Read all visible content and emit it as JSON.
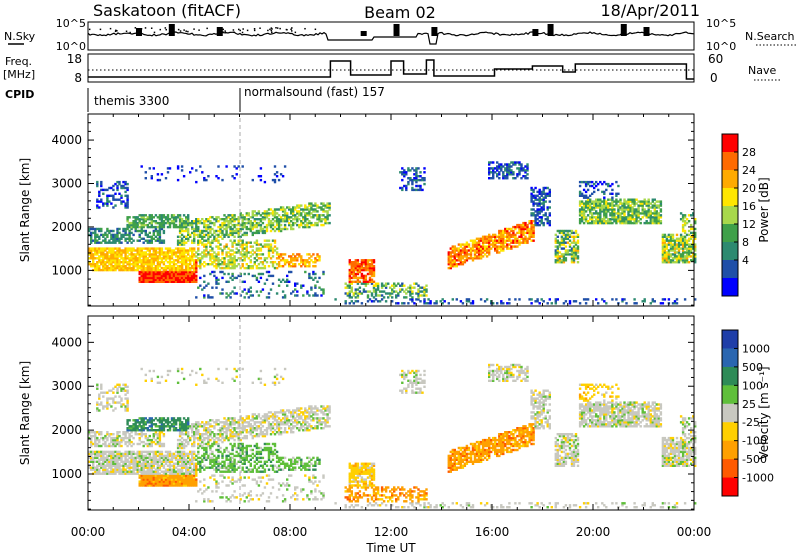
{
  "header": {
    "station": "Saskatoon (fitACF)",
    "beam": "Beam 02",
    "date": "18/Apr/2011"
  },
  "nsky_panel": {
    "left_label": "N.Sky",
    "left_ticks": [
      "10^5",
      "10^0"
    ],
    "right_label": "N.Search",
    "right_ticks": [
      "10^5",
      "10^0"
    ]
  },
  "freq_panel": {
    "left_label_line1": "Freq.",
    "left_label_line2": "[MHz]",
    "left_ticks": [
      "18",
      "8"
    ],
    "right_label": "Nave",
    "right_ticks": [
      "60",
      "0"
    ]
  },
  "cpid_panel": {
    "label": "CPID",
    "modes": [
      {
        "name": "themis 3300",
        "start_hour": 0
      },
      {
        "name": "normalsound (fast) 157",
        "start_hour": 6
      }
    ]
  },
  "chart_data": [
    {
      "type": "heatmap",
      "panel": "power",
      "ylabel": "Slant Range [km]",
      "yticks": [
        1000,
        2000,
        3000,
        4000
      ],
      "ylim": [
        180,
        4600
      ],
      "colorbar": {
        "label": "Power [dB]",
        "ticks": [
          "28",
          "24",
          "20",
          "16",
          "12",
          "8",
          "4"
        ],
        "colors": [
          "#ff0000",
          "#ff6a00",
          "#ffaa00",
          "#ffe600",
          "#a8d84b",
          "#3fa049",
          "#2d8a70",
          "#1f4fa8",
          "#0000ff"
        ]
      }
    },
    {
      "type": "heatmap",
      "panel": "velocity",
      "ylabel": "Slant Range [km]",
      "yticks": [
        1000,
        2000,
        3000,
        4000
      ],
      "ylim": [
        180,
        4600
      ],
      "colorbar": {
        "label": "Velocity [m s⁻¹]",
        "ticks": [
          "1000",
          "500",
          "100",
          "25",
          "-25",
          "-100",
          "-500",
          "-1000"
        ],
        "colors": [
          "#1f3ea8",
          "#2a66b0",
          "#2e8b57",
          "#5fbf3a",
          "#c8c8c0",
          "#ffd000",
          "#ffa000",
          "#ff5a00",
          "#ff0000"
        ]
      }
    }
  ],
  "time_axis": {
    "label": "Time UT",
    "ticks": [
      "00:00",
      "04:00",
      "08:00",
      "12:00",
      "16:00",
      "20:00",
      "00:00"
    ],
    "xlim_hours": [
      0,
      24
    ]
  }
}
